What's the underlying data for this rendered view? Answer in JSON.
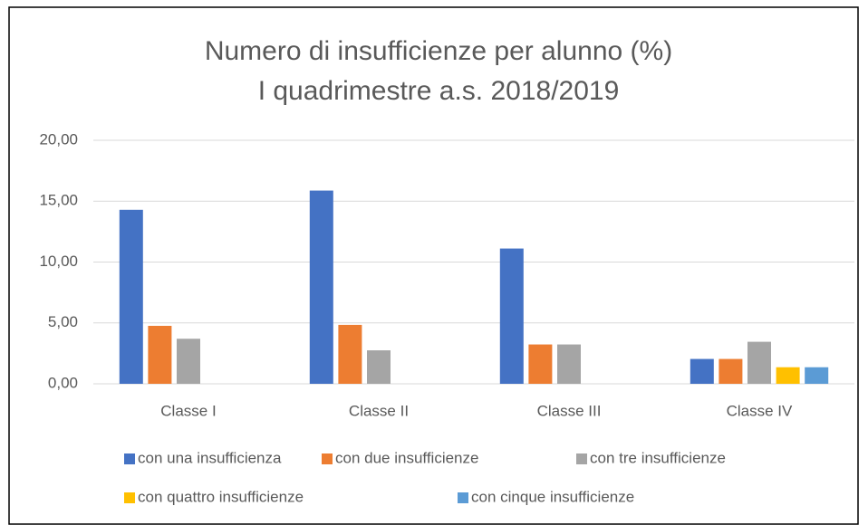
{
  "chart_data": {
    "type": "bar",
    "title": "Numero di insufficienze per alunno (%)",
    "subtitle": "I quadrimestre a.s. 2018/2019",
    "categories": [
      "Classe I",
      "Classe II",
      "Classe III",
      "Classe IV"
    ],
    "series": [
      {
        "name": "con una insufficienza",
        "color": "#4472c4",
        "values": [
          14.29,
          15.87,
          11.11,
          2.04
        ]
      },
      {
        "name": "con due insufficienze",
        "color": "#ed7d31",
        "values": [
          4.76,
          4.84,
          3.23,
          2.04
        ]
      },
      {
        "name": "con tre insufficienze",
        "color": "#a5a5a5",
        "values": [
          3.7,
          2.75,
          3.23,
          3.45
        ]
      },
      {
        "name": "con quattro insufficienze",
        "color": "#ffc000",
        "values": [
          0,
          0,
          0,
          1.36
        ]
      },
      {
        "name": "con cinque insufficienze",
        "color": "#5b9bd5",
        "values": [
          0,
          0,
          0,
          1.36
        ]
      }
    ],
    "ylim": [
      0,
      20
    ],
    "yticks": [
      {
        "value": 0,
        "label": "0,00"
      },
      {
        "value": 5,
        "label": "5,00"
      },
      {
        "value": 10,
        "label": "10,00"
      },
      {
        "value": 15,
        "label": "15,00"
      },
      {
        "value": 20,
        "label": "20,00"
      }
    ],
    "grid": true,
    "legend": "bottom"
  }
}
